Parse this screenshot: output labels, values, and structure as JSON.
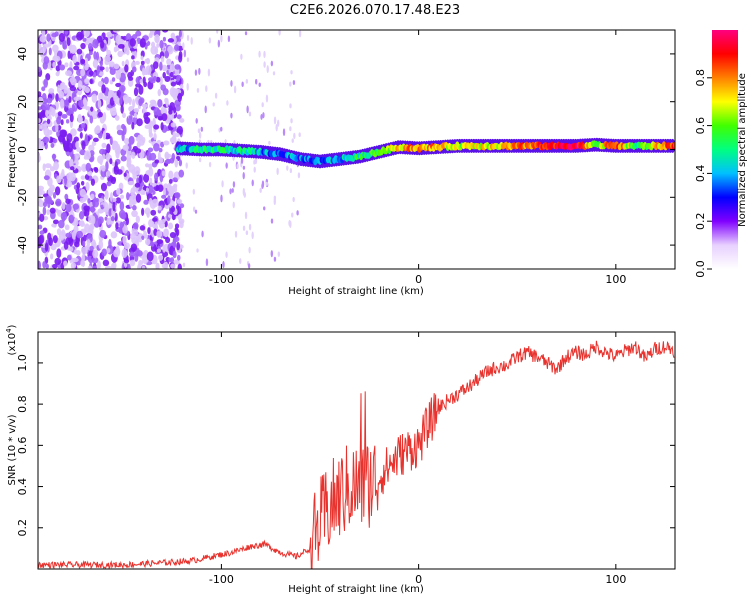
{
  "title": "C2E6.2026.070.17.48.E23",
  "chart_data": [
    {
      "type": "heatmap",
      "xlabel": "Height of straight line (km)",
      "ylabel": "Frequency (Hz)",
      "xlim": [
        -193,
        130
      ],
      "ylim": [
        -50,
        50
      ],
      "xticks": [
        -100,
        0,
        100
      ],
      "yticks": [
        -40,
        -20,
        0,
        20,
        40
      ],
      "colorbar": {
        "label": "Normalized spectral amplitude",
        "range": [
          0,
          1
        ],
        "ticks": [
          "0.0",
          "0.2",
          "0.4",
          "0.6",
          "0.8"
        ],
        "colors": [
          "#ffffff",
          "#e8d0ff",
          "#8000ff",
          "#0000ff",
          "#00c0ff",
          "#00ff80",
          "#40ff00",
          "#ffff00",
          "#ff8000",
          "#ff0000",
          "#ff0080"
        ]
      },
      "noise_region_x": [
        -193,
        -120
      ],
      "track": {
        "x": [
          -122,
          -110,
          -100,
          -90,
          -80,
          -70,
          -60,
          -50,
          -40,
          -30,
          -20,
          -10,
          0,
          10,
          20,
          40,
          60,
          80,
          90,
          100,
          110,
          130
        ],
        "freq": [
          0.5,
          0,
          0,
          -0.5,
          -1,
          -2,
          -4,
          -5,
          -4,
          -3,
          -1,
          1,
          0.5,
          1,
          1.5,
          1.5,
          1.5,
          1.5,
          2,
          1.5,
          1.5,
          1.5
        ],
        "amplitude": [
          0.4,
          0.45,
          0.5,
          0.45,
          0.4,
          0.35,
          0.35,
          0.35,
          0.4,
          0.5,
          0.6,
          0.75,
          0.8,
          0.75,
          0.65,
          0.7,
          0.85,
          0.95,
          0.6,
          0.9,
          0.5,
          0.9
        ]
      }
    },
    {
      "type": "line",
      "xlabel": "Height of straight line (km)",
      "ylabel": "SNR (10 * v/v)",
      "yscale_label": "(x10",
      "yscale_exp": "4",
      "xlim": [
        -193,
        130
      ],
      "ylim": [
        0,
        1.15
      ],
      "xticks": [
        -100,
        0,
        100
      ],
      "yticks": [
        0.2,
        0.4,
        0.6,
        0.8,
        1.0
      ],
      "color": "#e8322d",
      "series": [
        {
          "name": "SNR",
          "x": [
            -193,
            -170,
            -150,
            -130,
            -115,
            -105,
            -95,
            -85,
            -78,
            -70,
            -62,
            -55,
            -50,
            -45,
            -40,
            -35,
            -30,
            -25,
            -20,
            -15,
            -10,
            -5,
            0,
            5,
            10,
            15,
            20,
            25,
            30,
            35,
            40,
            45,
            50,
            55,
            60,
            65,
            70,
            75,
            80,
            85,
            90,
            95,
            100,
            105,
            110,
            115,
            120,
            125,
            130
          ],
          "y": [
            0.02,
            0.02,
            0.02,
            0.03,
            0.04,
            0.06,
            0.08,
            0.11,
            0.12,
            0.08,
            0.06,
            0.1,
            0.22,
            0.3,
            0.35,
            0.4,
            0.4,
            0.42,
            0.45,
            0.5,
            0.55,
            0.58,
            0.6,
            0.7,
            0.78,
            0.82,
            0.85,
            0.88,
            0.92,
            0.96,
            0.98,
            0.99,
            1.03,
            1.05,
            1.03,
            1.0,
            0.97,
            1.03,
            1.05,
            1.04,
            1.08,
            1.05,
            1.03,
            1.06,
            1.08,
            1.02,
            1.07,
            1.08,
            1.06
          ]
        }
      ]
    }
  ]
}
